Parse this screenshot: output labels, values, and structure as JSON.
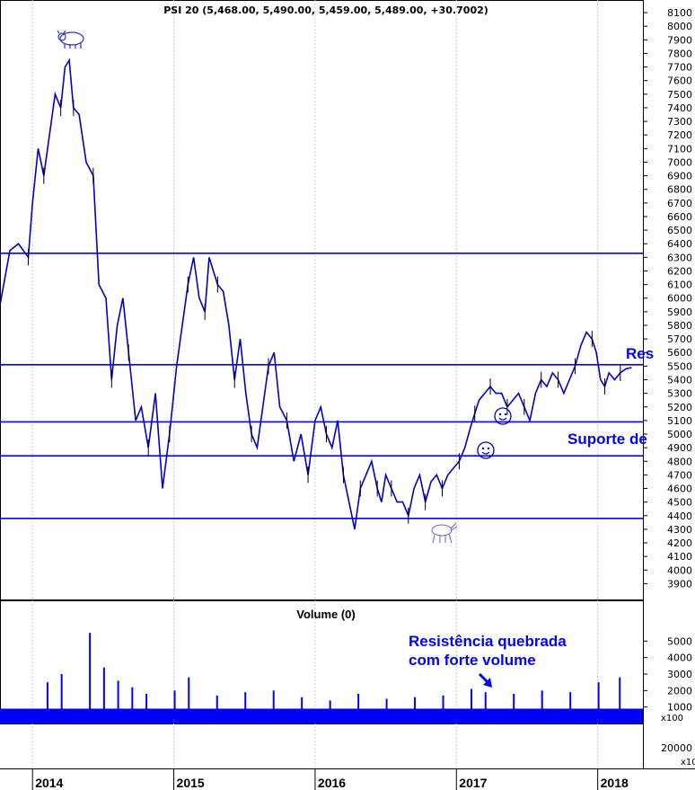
{
  "header": {
    "title": "PSI 20 (5,468.00, 5,490.00, 5,459.00, 5,489.00, +30.7002)"
  },
  "annotations": {
    "resistance_partial": "Res",
    "support_partial": "Suporte de",
    "volume_note_line1": "Resistência quebrada",
    "volume_note_line2": "com forte volume",
    "volume_multiplier": "x100",
    "lower_multiplier": "x10"
  },
  "colors": {
    "price": "#0000cc",
    "volume": "#0000ff",
    "lines": "#0000ff",
    "grid": "#cccccc",
    "annotation": "#0000ff"
  },
  "chart_data": [
    {
      "type": "line",
      "title": "PSI 20 (5,468.00, 5,490.00, 5,459.00, 5,489.00, +30.7002)",
      "x_tick_labels": [
        "2014",
        "2015",
        "2016",
        "2017",
        "2018"
      ],
      "y_tick_labels": [
        "3900",
        "4000",
        "4100",
        "4200",
        "4300",
        "4400",
        "4500",
        "4600",
        "4700",
        "4800",
        "4900",
        "5000",
        "5100",
        "5200",
        "5300",
        "5400",
        "5500",
        "5600",
        "5700",
        "5800",
        "5900",
        "6000",
        "6100",
        "6200",
        "6300",
        "6400",
        "6500",
        "6600",
        "6700",
        "6800",
        "6900",
        "7000",
        "7100",
        "7200",
        "7300",
        "7400",
        "7500",
        "7600",
        "7700",
        "7800",
        "7900",
        "8000",
        "8100"
      ],
      "ylim": [
        3830,
        8140
      ],
      "xlim": [
        2013.77,
        2018.32
      ],
      "grid": true,
      "series": [
        {
          "x": [
            2013.77,
            2013.84,
            2013.9,
            2013.97,
            2014.0,
            2014.04,
            2014.08,
            2014.12,
            2014.16,
            2014.2,
            2014.23,
            2014.26,
            2014.29,
            2014.33,
            2014.38,
            2014.43,
            2014.47,
            2014.52,
            2014.56,
            2014.6,
            2014.64,
            2014.68,
            2014.73,
            2014.77,
            2014.82,
            2014.87,
            2014.92,
            2014.97,
            2015.02,
            2015.06,
            2015.1,
            2015.14,
            2015.18,
            2015.22,
            2015.25,
            2015.28,
            2015.31,
            2015.35,
            2015.39,
            2015.43,
            2015.47,
            2015.51,
            2015.55,
            2015.59,
            2015.63,
            2015.67,
            2015.71,
            2015.75,
            2015.8,
            2015.85,
            2015.9,
            2015.95,
            2016.0,
            2016.04,
            2016.08,
            2016.12,
            2016.16,
            2016.2,
            2016.24,
            2016.28,
            2016.32,
            2016.36,
            2016.4,
            2016.44,
            2016.47,
            2016.5,
            2016.54,
            2016.58,
            2016.62,
            2016.66,
            2016.7,
            2016.74,
            2016.78,
            2016.82,
            2016.86,
            2016.9,
            2016.94,
            2016.98,
            2017.02,
            2017.06,
            2017.1,
            2017.13,
            2017.16,
            2017.2,
            2017.24,
            2017.28,
            2017.32,
            2017.36,
            2017.4,
            2017.44,
            2017.48,
            2017.52,
            2017.56,
            2017.6,
            2017.64,
            2017.68,
            2017.72,
            2017.76,
            2017.8,
            2017.84,
            2017.88,
            2017.92,
            2017.96,
            2017.99,
            2018.02,
            2018.05,
            2018.08,
            2018.12,
            2018.16,
            2018.2,
            2018.24
          ],
          "y": [
            5950,
            6350,
            6400,
            6300,
            6700,
            7100,
            6900,
            7200,
            7500,
            7400,
            7700,
            7750,
            7400,
            7350,
            7000,
            6900,
            6100,
            6000,
            5400,
            5800,
            6000,
            5600,
            5100,
            5200,
            4900,
            5300,
            4600,
            5000,
            5500,
            5800,
            6100,
            6300,
            6000,
            5900,
            6300,
            6200,
            6100,
            6050,
            5800,
            5400,
            5700,
            5300,
            5000,
            4900,
            5200,
            5500,
            5600,
            5200,
            5100,
            4800,
            5000,
            4700,
            5100,
            5200,
            5000,
            4900,
            5100,
            4700,
            4500,
            4300,
            4600,
            4700,
            4800,
            4600,
            4500,
            4700,
            4600,
            4500,
            4500,
            4400,
            4600,
            4700,
            4500,
            4650,
            4700,
            4600,
            4700,
            4750,
            4800,
            4900,
            5050,
            5150,
            5250,
            5300,
            5350,
            5300,
            5300,
            5200,
            5250,
            5300,
            5200,
            5100,
            5300,
            5400,
            5350,
            5450,
            5400,
            5300,
            5400,
            5500,
            5650,
            5750,
            5700,
            5600,
            5400,
            5350,
            5450,
            5400,
            5450,
            5480,
            5489
          ]
        }
      ],
      "horizontal_lines": [
        6330,
        5510,
        5090,
        4840,
        4380
      ]
    },
    {
      "type": "bar",
      "title": "Volume (0)",
      "y_tick_labels": [
        "1000",
        "2000",
        "3000",
        "4000",
        "5000"
      ],
      "lower_tick_label": "20000",
      "ylim": [
        0,
        6000
      ],
      "x": [
        2014.1,
        2014.2,
        2014.4,
        2014.5,
        2014.6,
        2014.7,
        2014.8,
        2015.0,
        2015.1,
        2015.3,
        2015.5,
        2015.7,
        2015.9,
        2016.1,
        2016.3,
        2016.5,
        2016.7,
        2016.9,
        2017.1,
        2017.2,
        2017.4,
        2017.6,
        2017.8,
        2018.0,
        2018.15
      ],
      "values": [
        2500,
        3000,
        5500,
        3400,
        2600,
        2200,
        1800,
        2000,
        2800,
        1700,
        1900,
        2000,
        1600,
        1400,
        1800,
        1500,
        1600,
        1700,
        2100,
        1900,
        1800,
        2000,
        1900,
        2500,
        2800
      ]
    }
  ]
}
